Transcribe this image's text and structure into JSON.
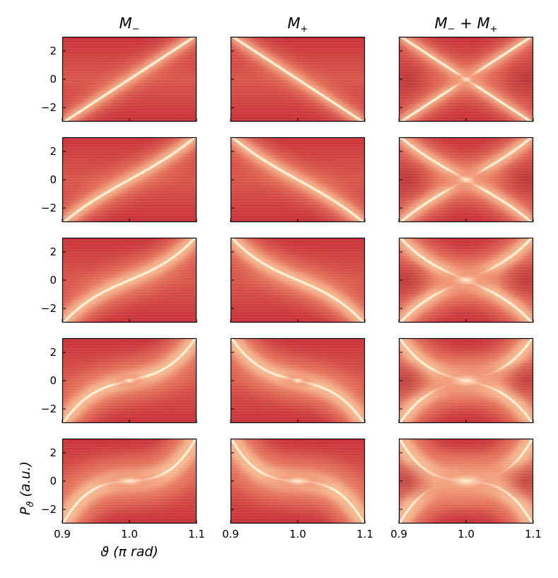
{
  "chart_data": {
    "type": "heatmap",
    "layout": {
      "rows": 5,
      "cols": 3
    },
    "column_titles": [
      "M_−",
      "M_+",
      "M_− + M_+"
    ],
    "xlabel": "ϑ (π rad)",
    "ylabel": "P_ϑ (a.u.)",
    "xlim": [
      0.9,
      1.1
    ],
    "ylim": [
      -3,
      3
    ],
    "x_ticks": [
      0.9,
      1.0,
      1.1
    ],
    "x_tick_labels": [
      "0.9",
      "1.0",
      "1.1"
    ],
    "y_ticks": [
      -2,
      0,
      2
    ],
    "y_tick_labels": [
      "−2",
      "0",
      "2"
    ],
    "x_ticks_labeled_on_row": 5,
    "y_ticks_labeled_on_column": 1,
    "colormap": {
      "low": "#c8323a",
      "mid": "#ee8a6a",
      "high": "#fff0d2"
    },
    "panels": [
      {
        "row": 1,
        "col": 1,
        "map": "M_minus"
      },
      {
        "row": 1,
        "col": 2,
        "map": "M_plus"
      },
      {
        "row": 1,
        "col": 3,
        "map": "M_sum"
      },
      {
        "row": 2,
        "col": 1,
        "map": "M_minus"
      },
      {
        "row": 2,
        "col": 2,
        "map": "M_plus"
      },
      {
        "row": 2,
        "col": 3,
        "map": "M_sum"
      },
      {
        "row": 3,
        "col": 1,
        "map": "M_minus"
      },
      {
        "row": 3,
        "col": 2,
        "map": "M_plus"
      },
      {
        "row": 3,
        "col": 3,
        "map": "M_sum"
      },
      {
        "row": 4,
        "col": 1,
        "map": "M_minus"
      },
      {
        "row": 4,
        "col": 2,
        "map": "M_plus"
      },
      {
        "row": 4,
        "col": 3,
        "map": "M_sum"
      },
      {
        "row": 5,
        "col": 1,
        "map": "M_minus"
      },
      {
        "row": 5,
        "col": 2,
        "map": "M_plus"
      },
      {
        "row": 5,
        "col": 3,
        "map": "M_sum"
      }
    ]
  }
}
